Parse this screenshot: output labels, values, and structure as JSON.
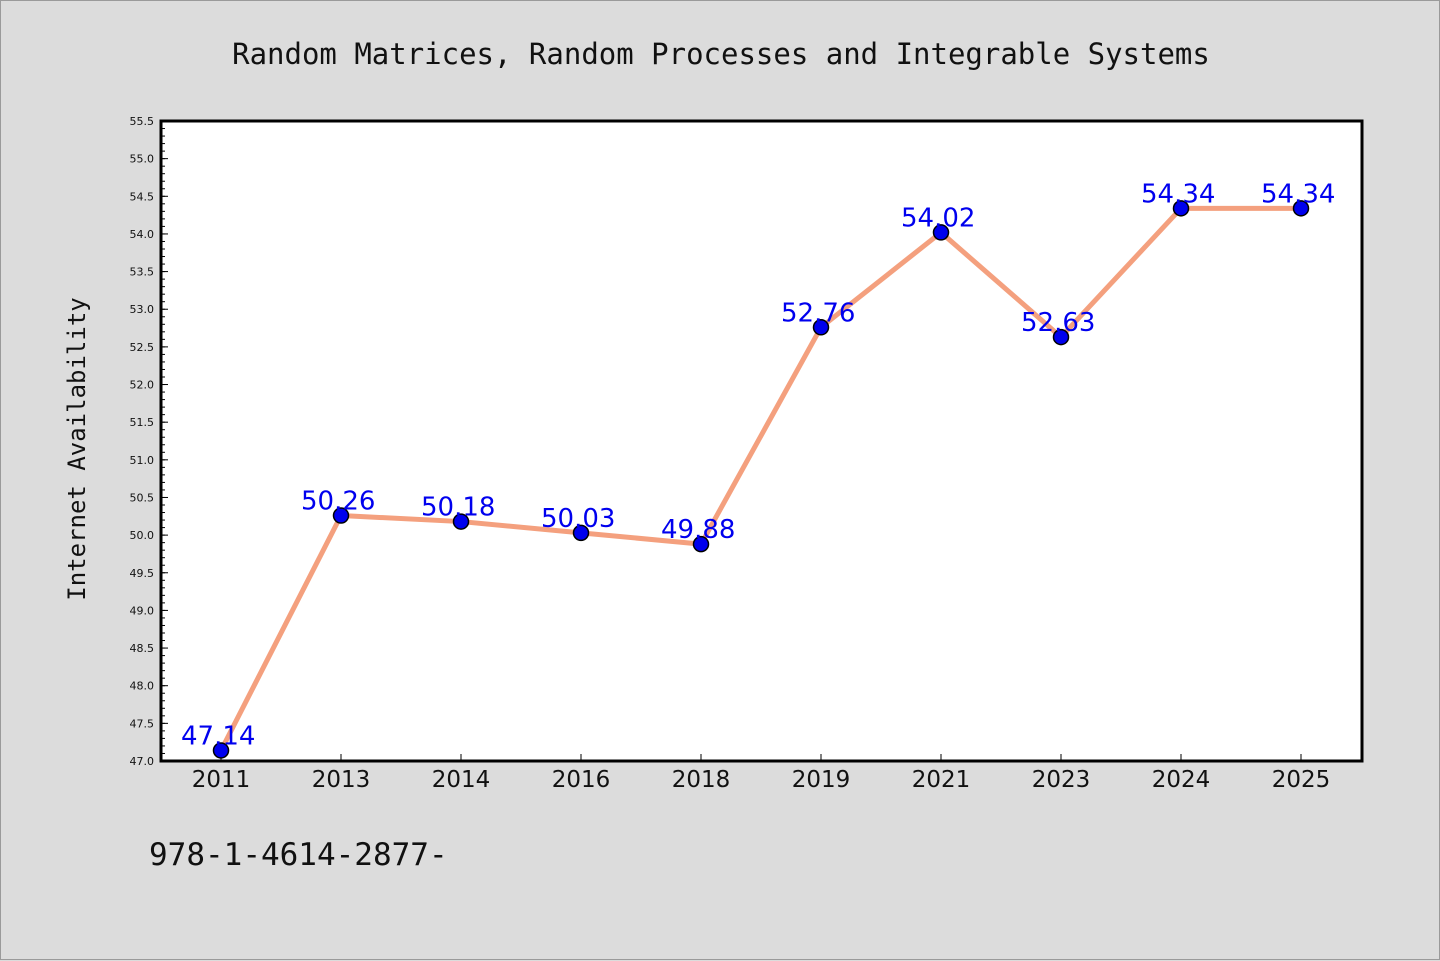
{
  "chart_data": {
    "type": "line",
    "title": "Random Matrices, Random Processes and Integrable Systems",
    "xlabel": "",
    "ylabel": "Internet Availability",
    "categories": [
      "2011",
      "2013",
      "2014",
      "2016",
      "2018",
      "2019",
      "2021",
      "2023",
      "2024",
      "2025"
    ],
    "series": [
      {
        "values": [
          47.14,
          50.26,
          50.18,
          50.03,
          49.88,
          52.76,
          54.02,
          52.63,
          54.34,
          54.34
        ],
        "labels": [
          "47.14",
          "50.26",
          "50.18",
          "50.03",
          "49.88",
          "52.76",
          "54.02",
          "52.63",
          "54.34",
          "54.34"
        ]
      }
    ],
    "ylim": [
      47.0,
      55.5
    ],
    "yticks": [
      "47.0",
      "47.5",
      "48.0",
      "48.5",
      "49.0",
      "49.5",
      "50.0",
      "50.5",
      "51.0",
      "51.5",
      "52.0",
      "52.5",
      "53.0",
      "53.5",
      "54.0",
      "54.5",
      "55.0",
      "55.5"
    ],
    "grid": false,
    "legend": "none",
    "colors": {
      "line": "#f4a07e",
      "marker": "#0000ee",
      "data_label": "#0000ee",
      "background": "#dcdcdc",
      "plot_area": "#ffffff"
    }
  },
  "footer": {
    "isbn_text": "978-1-4614-2877-"
  }
}
